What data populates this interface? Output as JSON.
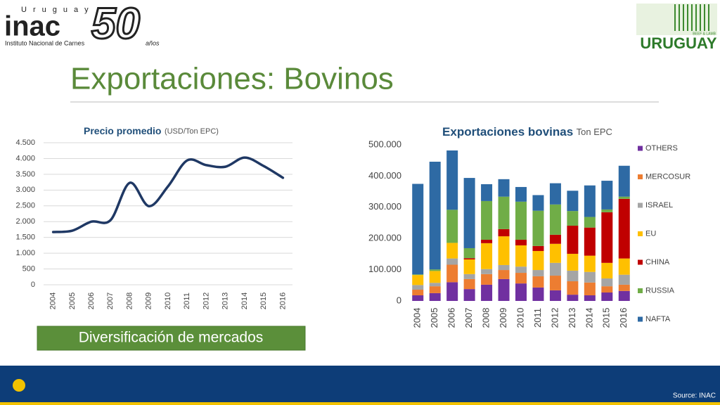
{
  "logo_left": {
    "country": "Uruguay",
    "name": "inac",
    "full_name": "Instituto Nacional de Carnes",
    "anniversary": "50",
    "anniversary_word": "años"
  },
  "logo_right": {
    "tagline": "BEEF & LAMB",
    "name": "URUGUAY"
  },
  "title": "Exportaciones: Bovinos",
  "banner": "Diversificación de mercados",
  "source": "Source: INAC",
  "chart_data": [
    {
      "type": "line",
      "title": "Precio promedio",
      "title_unit": "(USD/Ton EPC)",
      "categories": [
        "2004",
        "2005",
        "2006",
        "2007",
        "2008",
        "2009",
        "2010",
        "2011",
        "2012",
        "2013",
        "2014",
        "2015",
        "2016"
      ],
      "values": [
        1670,
        1715,
        2000,
        2050,
        3230,
        2490,
        3120,
        3940,
        3790,
        3740,
        4030,
        3760,
        3390
      ],
      "color": "#1f3864",
      "ylim": [
        0,
        4500
      ],
      "yticks": [
        0,
        500,
        {
          "value": 1000,
          "label": "1.000"
        },
        {
          "value": 1500,
          "label": "1.500"
        },
        {
          "value": 2000,
          "label": "2.000"
        },
        {
          "value": 2500,
          "label": "2.500"
        },
        {
          "value": 3000,
          "label": "3.000"
        },
        {
          "value": 3500,
          "label": "3.500"
        },
        {
          "value": 4000,
          "label": "4.000"
        },
        {
          "value": 4500,
          "label": "4.500"
        }
      ],
      "grid": true
    },
    {
      "type": "stacked_bar",
      "title": "Exportaciones bovinas",
      "title_unit": "Ton EPC",
      "categories": [
        "2004",
        "2005",
        "2006",
        "2007",
        "2008",
        "2009",
        "2010",
        "2011",
        "2012",
        "2013",
        "2014",
        "2015",
        "2016"
      ],
      "series": [
        {
          "name": "OTHERS",
          "color": "#7030a0",
          "values": [
            18000,
            25000,
            60000,
            38000,
            52000,
            70000,
            56000,
            43000,
            34000,
            20000,
            18000,
            27000,
            32000
          ]
        },
        {
          "name": "MERCOSUR",
          "color": "#ed7d31",
          "values": [
            18000,
            22000,
            56000,
            32000,
            34000,
            29000,
            34000,
            36000,
            47000,
            43000,
            41000,
            20000,
            20000
          ]
        },
        {
          "name": "ISRAEL",
          "color": "#a5a5a5",
          "values": [
            15000,
            11000,
            20000,
            16000,
            16000,
            16000,
            20000,
            20000,
            41000,
            34000,
            34000,
            25000,
            32000
          ]
        },
        {
          "name": "EU",
          "color": "#ffc000",
          "values": [
            32000,
            38000,
            50000,
            47000,
            83000,
            92000,
            68000,
            61000,
            61000,
            54000,
            52000,
            50000,
            52000
          ]
        },
        {
          "name": "CHINA",
          "color": "#c00000",
          "values": [
            0,
            0,
            0,
            4000,
            11000,
            23000,
            18000,
            16000,
            29000,
            90000,
            90000,
            162000,
            191000
          ]
        },
        {
          "name": "RUSSIA",
          "color": "#70ad47",
          "values": [
            2000,
            5000,
            106000,
            32000,
            124000,
            104000,
            122000,
            113000,
            97000,
            47000,
            34000,
            9000,
            7000
          ]
        },
        {
          "name": "NAFTA",
          "color": "#2e6aa4",
          "values": [
            290000,
            345000,
            190000,
            225000,
            54000,
            56000,
            47000,
            50000,
            68000,
            65000,
            101000,
            92000,
            99000
          ]
        }
      ],
      "ylim": [
        0,
        500000
      ],
      "yticks": [
        0,
        {
          "value": 100000,
          "label": "100.000"
        },
        {
          "value": 200000,
          "label": "200.000"
        },
        {
          "value": 300000,
          "label": "300.000"
        },
        {
          "value": 400000,
          "label": "400.000"
        },
        {
          "value": 500000,
          "label": "500.000"
        }
      ],
      "grid": false
    }
  ]
}
